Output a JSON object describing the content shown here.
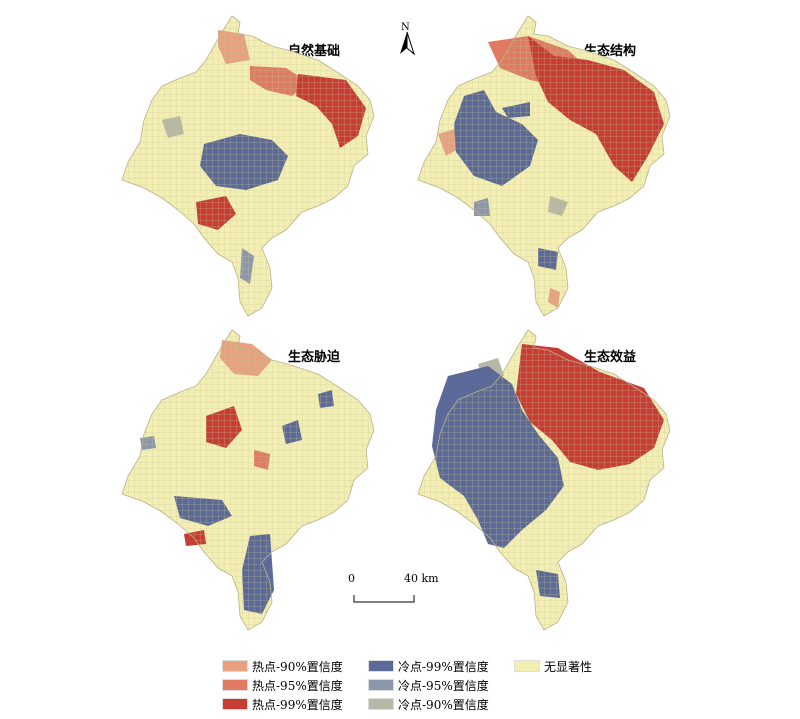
{
  "panels": [
    {
      "title": "自然基础",
      "zones": [
        "hot99",
        "hot95",
        "hot90",
        "cold99",
        "cold95",
        "cold90"
      ]
    },
    {
      "title": "生态结构",
      "zones": [
        "hot99",
        "hot95",
        "hot90",
        "cold99",
        "cold95",
        "cold90"
      ]
    },
    {
      "title": "生态胁迫",
      "zones": [
        "hot99",
        "hot95",
        "hot90",
        "cold99",
        "cold95"
      ]
    },
    {
      "title": "生态效益",
      "zones": [
        "hot99",
        "hot95",
        "cold99",
        "cold95",
        "cold90"
      ]
    }
  ],
  "north": {
    "label": "N"
  },
  "scale_bar": {
    "start": "0",
    "end": "40 km"
  },
  "legend": [
    {
      "key": "hot90",
      "label": "热点-90%置信度",
      "color": "#e9a07f"
    },
    {
      "key": "hot95",
      "label": "热点-95%置信度",
      "color": "#e07a62"
    },
    {
      "key": "hot99",
      "label": "热点-99%置信度",
      "color": "#c93c34"
    },
    {
      "key": "cold99",
      "label": "冷点-99%置信度",
      "color": "#5b6a99"
    },
    {
      "key": "cold95",
      "label": "冷点-95%置信度",
      "color": "#8d97ab"
    },
    {
      "key": "cold90",
      "label": "冷点-90%置信度",
      "color": "#b4b8a4"
    },
    {
      "key": "none",
      "label": "无显著性",
      "color": "#f3efb3"
    }
  ]
}
